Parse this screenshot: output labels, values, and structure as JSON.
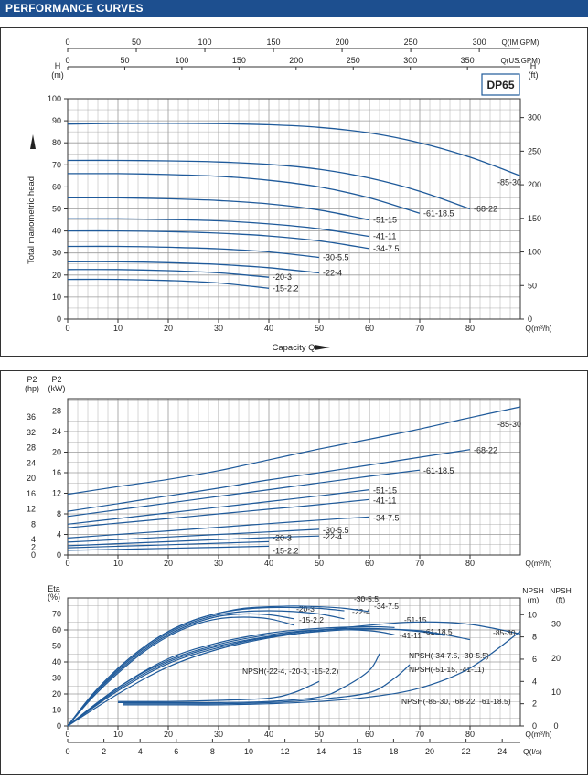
{
  "header": {
    "title": "PERFORMANCE CURVES"
  },
  "chart_data": [
    {
      "id": "head",
      "type": "line",
      "model": "DP65",
      "xlabel": "Capacity Q",
      "x_unit_label": "Q(m³/h)",
      "ylabel": "Total manometric head",
      "y_left_title": "H",
      "y_left_unit": "(m)",
      "y_right_title": "H",
      "y_right_unit": "(ft)",
      "top_axis1_label": "Q(IM.GPM)",
      "top_axis2_label": "Q(US.GPM)",
      "xlim": [
        0,
        90
      ],
      "ylim": [
        0,
        100
      ],
      "x_ticks": [
        0,
        10,
        20,
        30,
        40,
        50,
        60,
        70,
        80
      ],
      "y_ticks": [
        0,
        10,
        20,
        30,
        40,
        50,
        60,
        70,
        80,
        90,
        100
      ],
      "ft_ticks": [
        0,
        50,
        100,
        150,
        200,
        250,
        300
      ],
      "imgpm_ticks": [
        0,
        50,
        100,
        150,
        200,
        250,
        300
      ],
      "usgpm_ticks": [
        0,
        50,
        100,
        150,
        200,
        250,
        300,
        350
      ],
      "series": [
        {
          "name": "-85-30",
          "x": [
            0,
            10,
            20,
            30,
            40,
            50,
            60,
            70,
            80,
            90
          ],
          "y": [
            88.5,
            88.8,
            88.9,
            88.7,
            88.2,
            87,
            84.5,
            80,
            73.5,
            65
          ]
        },
        {
          "name": "-68-22",
          "x": [
            0,
            10,
            20,
            30,
            40,
            50,
            60,
            70,
            80
          ],
          "y": [
            72,
            72,
            71.8,
            71.3,
            70.2,
            68,
            64,
            58,
            50
          ]
        },
        {
          "name": "-61-18.5",
          "x": [
            0,
            10,
            20,
            30,
            40,
            50,
            60,
            70
          ],
          "y": [
            66,
            66,
            65.6,
            64.8,
            63,
            60,
            55,
            48
          ]
        },
        {
          "name": "-51-15",
          "x": [
            0,
            10,
            20,
            30,
            40,
            50,
            60
          ],
          "y": [
            55,
            55,
            54.6,
            53.8,
            52.3,
            49.5,
            45
          ]
        },
        {
          "name": "-41-11",
          "x": [
            0,
            10,
            20,
            30,
            40,
            50,
            60
          ],
          "y": [
            45.5,
            45.5,
            45.2,
            44.6,
            43.2,
            41,
            37.5
          ]
        },
        {
          "name": "-34-7.5",
          "x": [
            0,
            10,
            20,
            30,
            40,
            50,
            60
          ],
          "y": [
            40,
            40,
            39.7,
            39,
            37.7,
            35.5,
            32
          ]
        },
        {
          "name": "-30-5.5",
          "x": [
            0,
            10,
            20,
            30,
            40,
            50
          ],
          "y": [
            33,
            33,
            32.6,
            31.9,
            30.5,
            28
          ]
        },
        {
          "name": "-22-4",
          "x": [
            0,
            10,
            20,
            30,
            40,
            50
          ],
          "y": [
            26,
            26,
            25.6,
            24.8,
            23.3,
            21
          ]
        },
        {
          "name": "-20-3",
          "x": [
            0,
            10,
            20,
            30,
            40
          ],
          "y": [
            22.5,
            22.5,
            22,
            21,
            19
          ]
        },
        {
          "name": "-15-2.2",
          "x": [
            0,
            10,
            20,
            30,
            40
          ],
          "y": [
            18,
            18,
            17.5,
            16.4,
            14
          ]
        }
      ]
    },
    {
      "id": "power",
      "type": "line",
      "x_unit_label": "Q(m³/h)",
      "y_left_title": "P2",
      "y_left_unit": "(hp)",
      "y_right_title": "P2",
      "y_right_unit": "(kW)",
      "xlim": [
        0,
        90
      ],
      "ylim": [
        0,
        30.4
      ],
      "x_ticks": [
        0,
        10,
        20,
        30,
        40,
        50,
        60,
        70,
        80
      ],
      "kw_ticks": [
        0,
        4,
        8,
        12,
        16,
        20,
        24,
        28
      ],
      "hp_ticks": [
        0,
        2,
        4,
        8,
        12,
        16,
        20,
        24,
        28,
        32,
        36
      ],
      "series": [
        {
          "name": "-85-30",
          "x": [
            0,
            10,
            20,
            30,
            40,
            50,
            60,
            70,
            80,
            90
          ],
          "y": [
            11.8,
            13.3,
            14.7,
            16.4,
            18.5,
            20.6,
            22.5,
            24.5,
            26.7,
            28.8
          ]
        },
        {
          "name": "-68-22",
          "x": [
            0,
            10,
            20,
            30,
            40,
            50,
            60,
            70,
            80
          ],
          "y": [
            8.5,
            10,
            11.5,
            13,
            14.6,
            16,
            17.5,
            19,
            20.5
          ]
        },
        {
          "name": "-61-18.5",
          "x": [
            0,
            10,
            20,
            30,
            40,
            50,
            60,
            70
          ],
          "y": [
            7.5,
            8.8,
            10.1,
            11.4,
            12.7,
            14,
            15.3,
            16.5
          ]
        },
        {
          "name": "-51-15",
          "x": [
            0,
            10,
            20,
            30,
            40,
            50,
            60
          ],
          "y": [
            6,
            7.1,
            8.2,
            9.3,
            10.4,
            11.5,
            12.7
          ]
        },
        {
          "name": "-41-11",
          "x": [
            0,
            10,
            20,
            30,
            40,
            50,
            60
          ],
          "y": [
            5.3,
            6.2,
            7.1,
            8,
            8.9,
            9.8,
            10.8
          ]
        },
        {
          "name": "-34-7.5",
          "x": [
            0,
            10,
            20,
            30,
            40,
            50,
            60
          ],
          "y": [
            3.3,
            4,
            4.7,
            5.4,
            6.1,
            6.8,
            7.4
          ]
        },
        {
          "name": "-30-5.5",
          "x": [
            0,
            10,
            20,
            30,
            40,
            50
          ],
          "y": [
            2.5,
            3,
            3.5,
            4,
            4.5,
            5
          ]
        },
        {
          "name": "-22-4",
          "x": [
            0,
            10,
            20,
            30,
            40,
            50
          ],
          "y": [
            1.8,
            2.2,
            2.6,
            3,
            3.4,
            3.7
          ]
        },
        {
          "name": "-20-3",
          "x": [
            0,
            10,
            20,
            30,
            40
          ],
          "y": [
            1.4,
            1.7,
            2,
            2.3,
            2.6
          ]
        },
        {
          "name": "-15-2.2",
          "x": [
            0,
            10,
            20,
            30,
            40
          ],
          "y": [
            0.9,
            1.1,
            1.3,
            1.5,
            1.7
          ]
        }
      ]
    },
    {
      "id": "efficiency",
      "type": "line",
      "x_unit_label": "Q(m³/h)",
      "x2_unit_label": "Q(l/s)",
      "eta_title": "Eta",
      "eta_unit": "(%)",
      "npsh_m_title": "NPSH",
      "npsh_m_unit": "(m)",
      "npsh_ft_title": "NPSH",
      "npsh_ft_unit": "(ft)",
      "xlim": [
        0,
        90
      ],
      "ylim": [
        0,
        80
      ],
      "x_ticks": [
        0,
        10,
        20,
        30,
        40,
        50,
        60,
        70,
        80
      ],
      "ls_ticks": [
        0,
        2,
        4,
        6,
        8,
        10,
        12,
        14,
        16,
        18,
        20,
        22,
        24
      ],
      "eta_ticks": [
        0,
        10,
        20,
        30,
        40,
        50,
        60,
        70
      ],
      "npsh_m_ticks": [
        0,
        2,
        4,
        6,
        8,
        10
      ],
      "npsh_ft_ticks": [
        0,
        10,
        20,
        30
      ],
      "eta_series": [
        {
          "name": "-15-2.2",
          "x": [
            0,
            5,
            10,
            15,
            20,
            25,
            30,
            35,
            40,
            45
          ],
          "y": [
            0,
            18,
            33,
            46,
            56,
            63,
            67,
            68,
            67,
            63
          ]
        },
        {
          "name": "-20-3",
          "x": [
            0,
            5,
            10,
            15,
            20,
            25,
            30,
            35,
            40,
            45
          ],
          "y": [
            0,
            19,
            34,
            47,
            57,
            64,
            68.5,
            70,
            69.5,
            67
          ]
        },
        {
          "name": "-22-4",
          "x": [
            0,
            5,
            10,
            15,
            20,
            25,
            30,
            35,
            40,
            45,
            50,
            55
          ],
          "y": [
            0,
            19,
            35,
            48,
            58,
            65,
            69.5,
            71.5,
            72,
            71.5,
            70,
            67
          ]
        },
        {
          "name": "-30-5.5",
          "x": [
            0,
            5,
            10,
            15,
            20,
            25,
            30,
            35,
            40,
            45,
            50,
            55
          ],
          "y": [
            0,
            20,
            36,
            49,
            59,
            66,
            70.5,
            73,
            74,
            74,
            73.5,
            72
          ]
        },
        {
          "name": "-34-7.5",
          "x": [
            0,
            5,
            10,
            15,
            20,
            25,
            30,
            35,
            40,
            45,
            50,
            55,
            60
          ],
          "y": [
            0,
            20,
            36,
            49,
            59,
            66,
            70.5,
            73.5,
            74.5,
            75,
            74.5,
            73.5,
            71.5
          ]
        },
        {
          "name": "-41-11",
          "x": [
            0,
            10,
            20,
            30,
            40,
            50,
            60,
            65
          ],
          "y": [
            0,
            24,
            41,
            51,
            57,
            60,
            59.5,
            57
          ]
        },
        {
          "name": "-51-15",
          "x": [
            0,
            10,
            20,
            30,
            40,
            50,
            60,
            65
          ],
          "y": [
            0,
            24,
            42,
            52,
            58,
            61,
            62,
            61.5
          ]
        },
        {
          "name": "-61-18.5",
          "x": [
            0,
            10,
            20,
            30,
            40,
            50,
            60,
            70,
            75
          ],
          "y": [
            0,
            23,
            40,
            50,
            56,
            60,
            61,
            59,
            56.5
          ]
        },
        {
          "name": "-68-22",
          "x": [
            0,
            10,
            20,
            30,
            40,
            50,
            60,
            70,
            80
          ],
          "y": [
            0,
            22,
            39,
            49,
            55.5,
            59,
            60.5,
            59.5,
            54
          ]
        },
        {
          "name": "-85-30",
          "x": [
            0,
            10,
            20,
            30,
            40,
            50,
            60,
            70,
            80,
            90
          ],
          "y": [
            0,
            20,
            37,
            48,
            55,
            59.5,
            63,
            65,
            63.5,
            57.5
          ]
        }
      ],
      "npsh_series": [
        {
          "name": "NPSH(-22-4, -20-3, -15-2.2)",
          "x": [
            10,
            20,
            30,
            40,
            45,
            50
          ],
          "npsh_m": [
            2.2,
            2.2,
            2.3,
            2.5,
            3.0,
            4.0
          ]
        },
        {
          "name": "NPSH(-34-7.5, -30-5.5)",
          "x": [
            10,
            20,
            30,
            40,
            50,
            55,
            60,
            62
          ],
          "npsh_m": [
            2.1,
            2.1,
            2.1,
            2.2,
            2.6,
            3.5,
            5.0,
            6.5
          ]
        },
        {
          "name": "NPSH(-51-15, -41-11)",
          "x": [
            11,
            20,
            30,
            40,
            50,
            60,
            65,
            68
          ],
          "npsh_m": [
            2.0,
            2.0,
            2.0,
            2.1,
            2.4,
            3.0,
            4.3,
            5.5
          ]
        },
        {
          "name": "NPSH(-85-30, -68-22, -61-18.5)",
          "x": [
            11,
            20,
            30,
            40,
            50,
            60,
            70,
            80,
            90
          ],
          "npsh_m": [
            1.9,
            1.9,
            1.9,
            2.0,
            2.2,
            2.6,
            3.4,
            5.2,
            8.5
          ]
        }
      ]
    }
  ]
}
